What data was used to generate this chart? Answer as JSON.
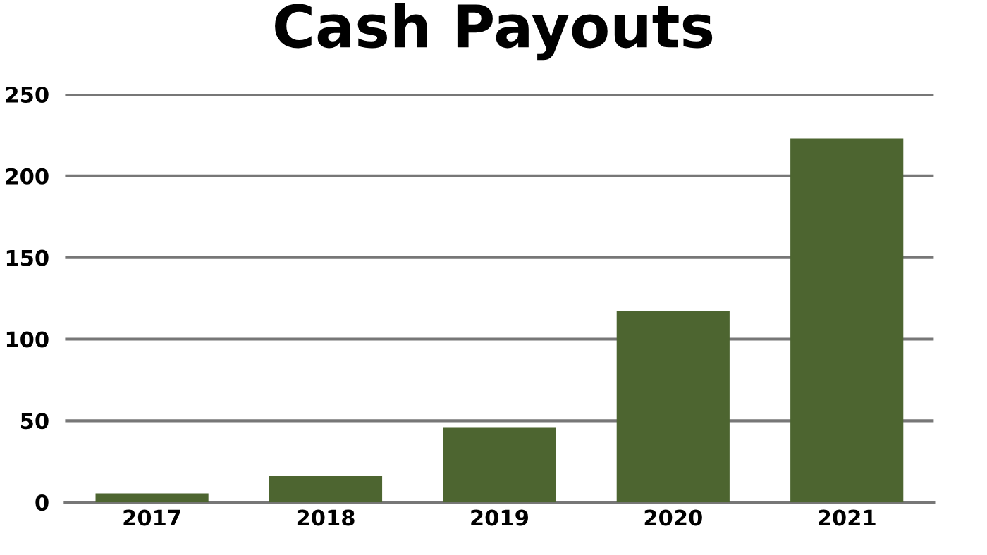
{
  "chart_data": {
    "type": "bar",
    "title": "Cash Payouts",
    "categories": [
      "2017",
      "2018",
      "2019",
      "2020",
      "2021"
    ],
    "values": [
      5.5,
      16,
      46,
      117,
      223
    ],
    "color": "#4d6530",
    "ylim": [
      0,
      250
    ],
    "yticks": [
      0,
      50,
      100,
      150,
      200,
      250
    ],
    "grid": "y"
  }
}
